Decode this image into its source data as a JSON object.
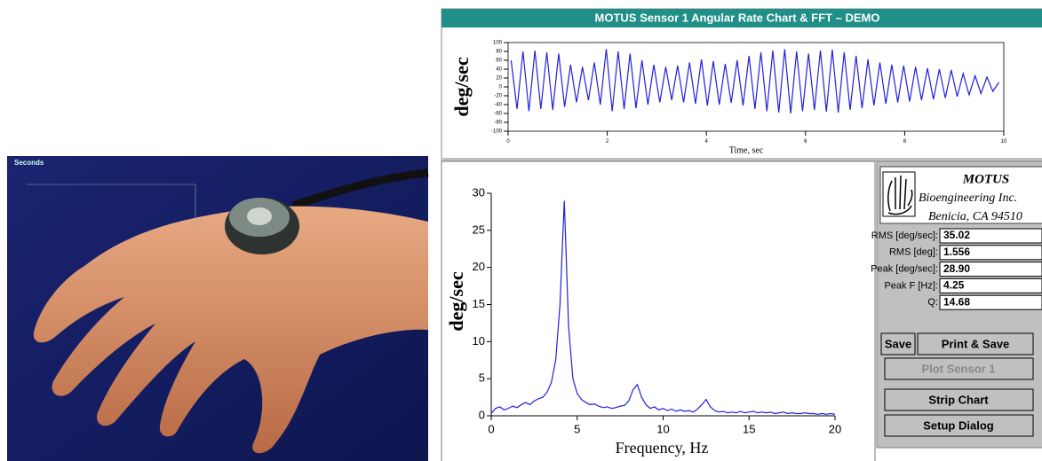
{
  "photo": {
    "label": "Seconds"
  },
  "window": {
    "title": "MOTUS Sensor 1 Angular Rate Chart & FFT – DEMO"
  },
  "chart_data": [
    {
      "type": "line",
      "color": "#2020e0",
      "xlabel": "Time, sec",
      "ylabel": "deg/sec",
      "xlim": [
        0,
        10
      ],
      "xticks": [
        0,
        2,
        4,
        6,
        8,
        10
      ],
      "ylim": [
        -100,
        100
      ],
      "yticks": [
        100,
        80,
        60,
        40,
        20,
        0,
        -20,
        -40,
        -60,
        -80,
        -100
      ],
      "x": [
        0.06,
        0.18,
        0.3,
        0.42,
        0.54,
        0.66,
        0.78,
        0.9,
        1.02,
        1.14,
        1.26,
        1.38,
        1.5,
        1.62,
        1.74,
        1.86,
        1.98,
        2.1,
        2.22,
        2.34,
        2.46,
        2.58,
        2.7,
        2.82,
        2.94,
        3.06,
        3.18,
        3.3,
        3.42,
        3.54,
        3.66,
        3.78,
        3.9,
        4.02,
        4.14,
        4.26,
        4.38,
        4.5,
        4.62,
        4.74,
        4.86,
        4.98,
        5.1,
        5.22,
        5.34,
        5.46,
        5.58,
        5.7,
        5.82,
        5.94,
        6.06,
        6.18,
        6.3,
        6.42,
        6.54,
        6.66,
        6.78,
        6.9,
        7.02,
        7.14,
        7.26,
        7.38,
        7.5,
        7.62,
        7.74,
        7.86,
        7.98,
        8.1,
        8.22,
        8.34,
        8.46,
        8.58,
        8.7,
        8.82,
        8.94,
        9.06,
        9.18,
        9.3,
        9.42,
        9.54,
        9.66,
        9.78,
        9.9
      ],
      "values": [
        60,
        -50,
        80,
        -55,
        82,
        -50,
        78,
        -52,
        75,
        -45,
        50,
        -35,
        45,
        -30,
        55,
        -40,
        85,
        -55,
        80,
        -50,
        75,
        -48,
        60,
        -40,
        50,
        -35,
        45,
        -30,
        48,
        -35,
        55,
        -38,
        62,
        -42,
        58,
        -40,
        52,
        -36,
        60,
        -42,
        70,
        -50,
        78,
        -55,
        82,
        -58,
        85,
        -60,
        80,
        -55,
        75,
        -52,
        82,
        -56,
        84,
        -58,
        78,
        -52,
        70,
        -48,
        62,
        -42,
        55,
        -38,
        50,
        -35,
        48,
        -33,
        45,
        -30,
        42,
        -28,
        40,
        -25,
        38,
        -22,
        30,
        -18,
        25,
        -15,
        22,
        -10,
        10
      ]
    },
    {
      "type": "line",
      "color": "#2020e0",
      "xlabel": "Frequency, Hz",
      "ylabel": "deg/sec",
      "xlim": [
        0,
        20
      ],
      "xticks": [
        0,
        5,
        10,
        15,
        20
      ],
      "ylim": [
        0,
        30
      ],
      "yticks": [
        0,
        5,
        10,
        15,
        20,
        25,
        30
      ],
      "x": [
        0,
        0.25,
        0.5,
        0.75,
        1,
        1.25,
        1.5,
        1.75,
        2,
        2.25,
        2.5,
        2.75,
        3,
        3.25,
        3.5,
        3.75,
        4,
        4.25,
        4.5,
        4.75,
        5,
        5.25,
        5.5,
        5.75,
        6,
        6.25,
        6.5,
        6.75,
        7,
        7.25,
        7.5,
        7.75,
        8,
        8.25,
        8.5,
        8.75,
        9,
        9.25,
        9.5,
        9.75,
        10,
        10.25,
        10.5,
        10.75,
        11,
        11.25,
        11.5,
        11.75,
        12,
        12.25,
        12.5,
        12.75,
        13,
        13.25,
        13.5,
        13.75,
        14,
        14.25,
        14.5,
        14.75,
        15,
        15.25,
        15.5,
        15.75,
        16,
        16.25,
        16.5,
        16.75,
        17,
        17.25,
        17.5,
        17.75,
        18,
        18.25,
        18.5,
        18.75,
        19,
        19.25,
        19.5,
        19.75,
        20
      ],
      "values": [
        0.3,
        1.0,
        1.2,
        0.8,
        1.0,
        1.3,
        1.1,
        1.5,
        1.8,
        1.5,
        2.0,
        2.3,
        2.5,
        3.2,
        4.5,
        7.5,
        15,
        29,
        12,
        5,
        3,
        2.2,
        1.8,
        1.5,
        1.6,
        1.3,
        1.1,
        1.2,
        1.0,
        1.1,
        1.3,
        1.4,
        2.0,
        3.5,
        4.2,
        2.5,
        1.5,
        1.0,
        1.2,
        0.8,
        1.0,
        0.7,
        0.9,
        0.6,
        0.8,
        0.6,
        0.7,
        0.5,
        0.9,
        1.5,
        2.2,
        1.2,
        0.7,
        0.5,
        0.6,
        0.4,
        0.5,
        0.4,
        0.6,
        0.4,
        0.5,
        0.6,
        0.4,
        0.5,
        0.4,
        0.5,
        0.3,
        0.4,
        0.5,
        0.3,
        0.4,
        0.3,
        0.3,
        0.4,
        0.3,
        0.3,
        0.2,
        0.3,
        0.2,
        0.3,
        0.2
      ]
    }
  ],
  "panel": {
    "company": [
      "MOTUS",
      "Bioengineering Inc.",
      "Benicia, CA 94510"
    ],
    "fields": [
      {
        "label": "RMS [deg/sec]:",
        "value": "35.02"
      },
      {
        "label": "RMS [deg]:",
        "value": "1.556"
      },
      {
        "label": "Peak [deg/sec]:",
        "value": "28.90"
      },
      {
        "label": "Peak F [Hz]:",
        "value": "4.25"
      },
      {
        "label": "Q:",
        "value": "14.68"
      }
    ],
    "buttons": [
      "Save",
      "Print & Save",
      "Plot Sensor 1",
      "Strip Chart",
      "Setup Dialog"
    ]
  }
}
